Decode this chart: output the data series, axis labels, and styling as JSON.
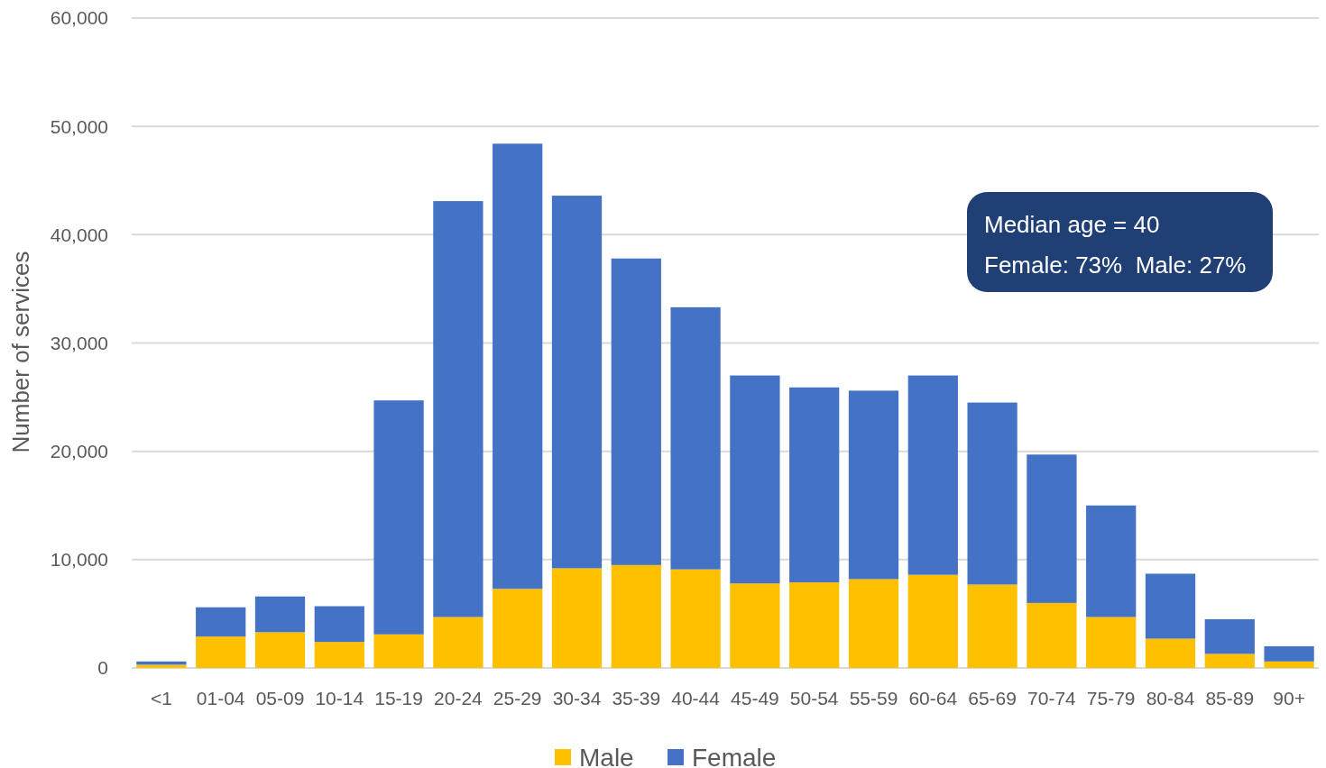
{
  "chart_data": {
    "type": "bar",
    "stacked": true,
    "ylabel": "Number of services",
    "categories": [
      "<1",
      "01-04",
      "05-09",
      "10-14",
      "15-19",
      "20-24",
      "25-29",
      "30-34",
      "35-39",
      "40-44",
      "45-49",
      "50-54",
      "55-59",
      "60-64",
      "65-69",
      "70-74",
      "75-79",
      "80-84",
      "85-89",
      "90+"
    ],
    "series": [
      {
        "name": "Male",
        "color": "#ffc000",
        "values": [
          300,
          2900,
          3300,
          2400,
          3100,
          4700,
          7300,
          9200,
          9500,
          9100,
          7800,
          7900,
          8200,
          8600,
          7700,
          6000,
          4700,
          2700,
          1300,
          600
        ]
      },
      {
        "name": "Female",
        "color": "#4472c4",
        "values": [
          300,
          2700,
          3300,
          3300,
          21600,
          38400,
          41100,
          34400,
          28300,
          24200,
          19200,
          18000,
          17400,
          18400,
          16800,
          13700,
          10300,
          6000,
          3200,
          1400
        ]
      }
    ],
    "ylim": [
      0,
      60000
    ],
    "yticks": [
      {
        "value": 0,
        "label": "0"
      },
      {
        "value": 10000,
        "label": "10,000"
      },
      {
        "value": 20000,
        "label": "20,000"
      },
      {
        "value": 30000,
        "label": "30,000"
      },
      {
        "value": 40000,
        "label": "40,000"
      },
      {
        "value": 50000,
        "label": "50,000"
      },
      {
        "value": 60000,
        "label": "60,000"
      }
    ],
    "grid": "y",
    "legend": "bottom",
    "annotations": [
      "Median age = 40",
      "Female: 73%  Male: 27%"
    ]
  }
}
